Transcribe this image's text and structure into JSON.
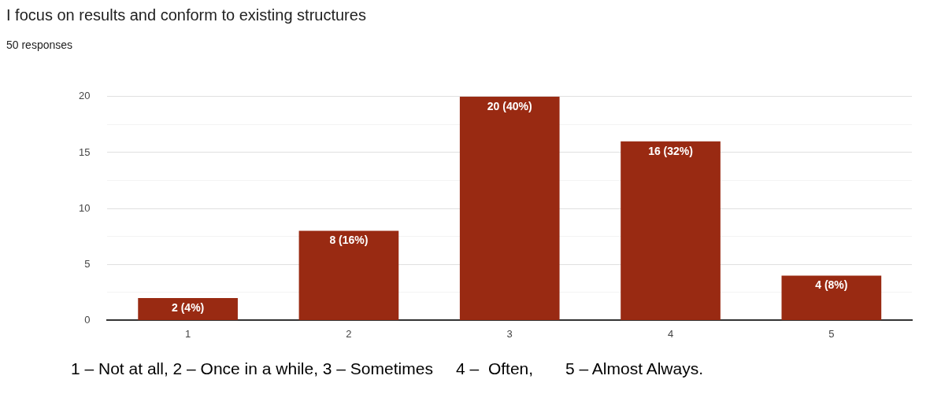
{
  "chart_data": {
    "type": "bar",
    "title": "I focus on results and conform to existing structures",
    "subtitle": "50 responses",
    "categories": [
      "1",
      "2",
      "3",
      "4",
      "5"
    ],
    "values": [
      2,
      8,
      20,
      16,
      4
    ],
    "value_labels": [
      "2 (4%)",
      "8 (16%)",
      "20 (40%)",
      "16 (32%)",
      "4 (8%)"
    ],
    "color": "#992a12",
    "ylim": [
      0,
      20
    ],
    "yticks": [
      0,
      {
        "value": 2.5,
        "label": null
      },
      5,
      {
        "value": 7.5,
        "label": null
      },
      10,
      {
        "value": 12.5,
        "label": null
      },
      15,
      {
        "value": 17.5,
        "label": null
      },
      20
    ],
    "grid": "y",
    "annotations": [
      "1 – Not at all, 2 – Once in a while, 3 – Sometimes     4 –  Often,       5 – Almost Always."
    ]
  }
}
